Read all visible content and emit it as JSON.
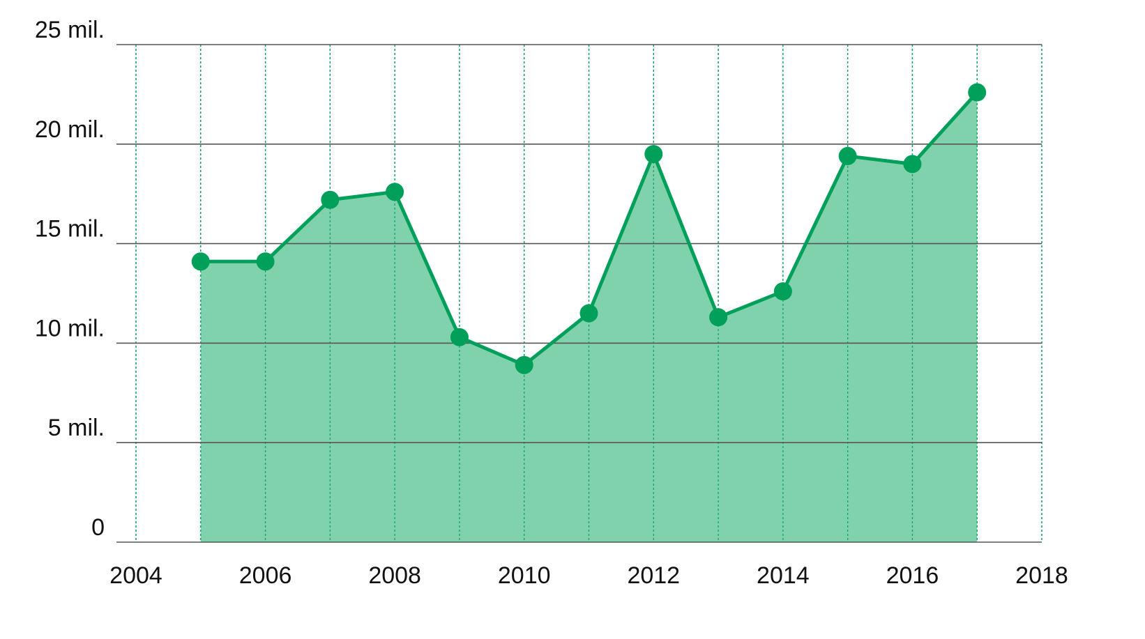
{
  "chart_data": {
    "type": "area",
    "title": "",
    "xlabel": "",
    "ylabel": "",
    "x": [
      2005,
      2006,
      2007,
      2008,
      2009,
      2010,
      2011,
      2012,
      2013,
      2014,
      2015,
      2016,
      2017
    ],
    "series": [
      {
        "values": [
          14.1,
          14.1,
          17.2,
          17.6,
          10.3,
          8.9,
          11.5,
          19.5,
          11.3,
          12.6,
          19.4,
          19.0,
          22.6
        ]
      }
    ],
    "xlim": [
      2004,
      2018
    ],
    "ylim": [
      0,
      25
    ],
    "x_ticks": [
      2004,
      2006,
      2008,
      2010,
      2012,
      2014,
      2016,
      2018
    ],
    "x_tick_labels": [
      "2004",
      "2006",
      "2008",
      "2010",
      "2012",
      "2014",
      "2016",
      "2018"
    ],
    "y_ticks": [
      0,
      5,
      10,
      15,
      20,
      25
    ],
    "y_tick_labels": [
      "0",
      "5 mil.",
      "10 mil.",
      "15 mil.",
      "20 mil.",
      "25 mil."
    ],
    "vertical_grid_years": [
      2004,
      2005,
      2006,
      2007,
      2008,
      2009,
      2010,
      2011,
      2012,
      2013,
      2014,
      2015,
      2016,
      2017,
      2018
    ],
    "grid": true,
    "legend": "none",
    "colors": {
      "line": "#00a05a",
      "fill": "#80d2ac",
      "horizontal_grid": "#555555",
      "vertical_grid": "#00a05a",
      "text": "#111111"
    }
  }
}
